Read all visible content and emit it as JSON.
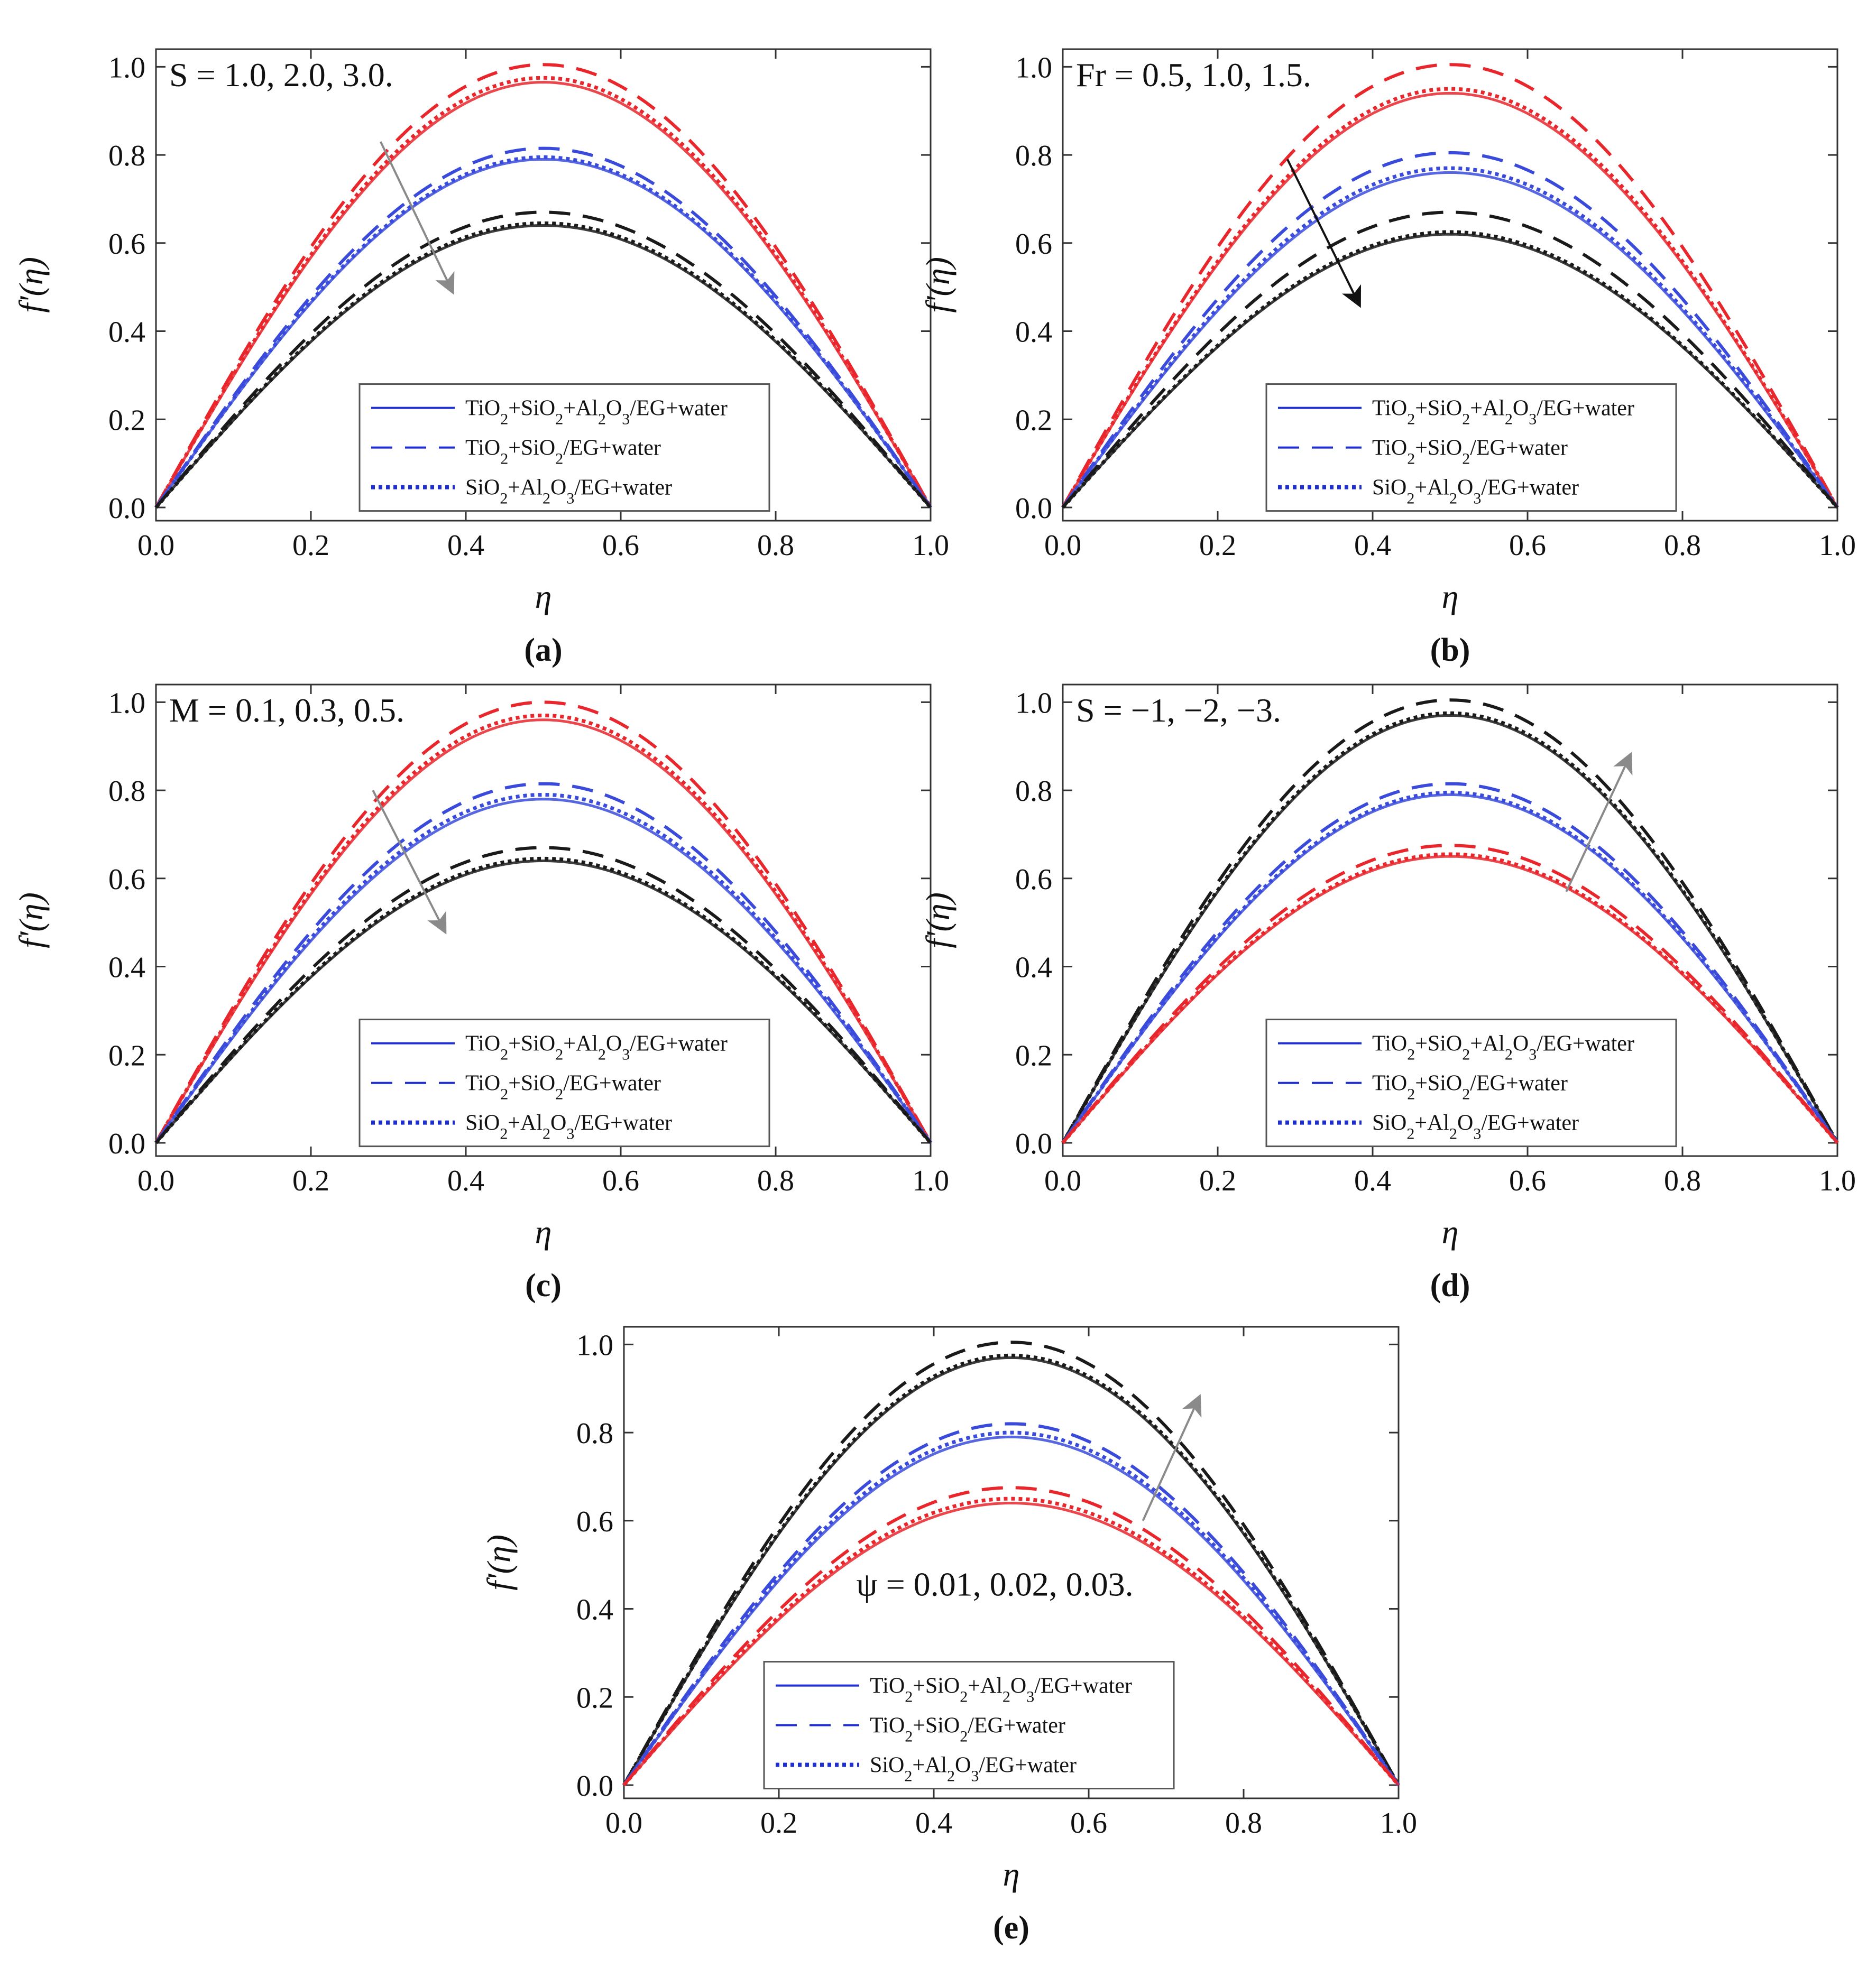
{
  "figure": {
    "series_styles": {
      "solid": "TiO2+SiO2+Al2O3/EG+water",
      "dashed": "TiO2+SiO2/EG+water",
      "dotted": "SiO2+Al2O3/EG+water"
    },
    "colors": {
      "red": "#e8262b",
      "blue": "#3a4bdc",
      "black": "#1a1a1a",
      "arrow_gray": "#8a8a8a",
      "arrow_black": "#111111",
      "legend_blue": "#1f2fd0"
    }
  },
  "chart_data": [
    {
      "panel": "(a)",
      "type": "line",
      "annotation": "S = 1.0, 2.0, 3.0.",
      "xlabel": "η",
      "ylabel": "f'(η)",
      "xlim": [
        0,
        1
      ],
      "ylim": [
        0,
        1
      ],
      "xticks": [
        "0.0",
        "0.2",
        "0.4",
        "0.6",
        "0.8",
        "1.0"
      ],
      "yticks": [
        "0.0",
        "0.2",
        "0.4",
        "0.6",
        "0.8",
        "1.0"
      ],
      "legend": [
        "TiO2+SiO2+Al2O3/EG+water",
        "TiO2+SiO2/EG+water",
        "SiO2+Al2O3/EG+water"
      ],
      "legend_position": "bottom-center",
      "arrow": {
        "from": [
          0.29,
          0.83
        ],
        "to": [
          0.38,
          0.5
        ],
        "color": "gray"
      },
      "curve_peaks": [
        {
          "color": "red",
          "solid": 0.965,
          "dashed": 1.005,
          "dotted": 0.975
        },
        {
          "color": "blue",
          "solid": 0.79,
          "dashed": 0.815,
          "dotted": 0.795
        },
        {
          "color": "black",
          "solid": 0.64,
          "dashed": 0.67,
          "dotted": 0.645
        }
      ]
    },
    {
      "panel": "(b)",
      "type": "line",
      "annotation": "Fr = 0.5, 1.0, 1.5.",
      "xlabel": "η",
      "ylabel": "f'(η)",
      "xlim": [
        0,
        1
      ],
      "ylim": [
        0,
        1
      ],
      "xticks": [
        "0.0",
        "0.2",
        "0.4",
        "0.6",
        "0.8",
        "1.0"
      ],
      "yticks": [
        "0.0",
        "0.2",
        "0.4",
        "0.6",
        "0.8",
        "1.0"
      ],
      "legend": [
        "TiO2+SiO2+Al2O3/EG+water",
        "TiO2+SiO2/EG+water",
        "SiO2+Al2O3/EG+water"
      ],
      "legend_position": "bottom-center",
      "arrow": {
        "from": [
          0.29,
          0.79
        ],
        "to": [
          0.38,
          0.47
        ],
        "color": "black"
      },
      "curve_peaks": [
        {
          "color": "red",
          "solid": 0.94,
          "dashed": 1.005,
          "dotted": 0.95
        },
        {
          "color": "blue",
          "solid": 0.76,
          "dashed": 0.805,
          "dotted": 0.77
        },
        {
          "color": "black",
          "solid": 0.62,
          "dashed": 0.67,
          "dotted": 0.625
        }
      ]
    },
    {
      "panel": "(c)",
      "type": "line",
      "annotation": "M = 0.1, 0.3, 0.5.",
      "xlabel": "η",
      "ylabel": "f'(η)",
      "xlim": [
        0,
        1
      ],
      "ylim": [
        0,
        1
      ],
      "xticks": [
        "0.0",
        "0.2",
        "0.4",
        "0.6",
        "0.8",
        "1.0"
      ],
      "yticks": [
        "0.0",
        "0.2",
        "0.4",
        "0.6",
        "0.8",
        "1.0"
      ],
      "legend": [
        "TiO2+SiO2+Al2O3/EG+water",
        "TiO2+SiO2/EG+water",
        "SiO2+Al2O3/EG+water"
      ],
      "legend_position": "bottom-center",
      "arrow": {
        "from": [
          0.28,
          0.8
        ],
        "to": [
          0.37,
          0.49
        ],
        "color": "gray"
      },
      "curve_peaks": [
        {
          "color": "red",
          "solid": 0.96,
          "dashed": 1.0,
          "dotted": 0.97
        },
        {
          "color": "blue",
          "solid": 0.78,
          "dashed": 0.815,
          "dotted": 0.79
        },
        {
          "color": "black",
          "solid": 0.64,
          "dashed": 0.67,
          "dotted": 0.645
        }
      ]
    },
    {
      "panel": "(d)",
      "type": "line",
      "annotation": "S = −1, −2, −3.",
      "xlabel": "η",
      "ylabel": "f'(η)",
      "xlim": [
        0,
        1
      ],
      "ylim": [
        0,
        1
      ],
      "xticks": [
        "0.0",
        "0.2",
        "0.4",
        "0.6",
        "0.8",
        "1.0"
      ],
      "yticks": [
        "0.0",
        "0.2",
        "0.4",
        "0.6",
        "0.8",
        "1.0"
      ],
      "legend": [
        "TiO2+SiO2+Al2O3/EG+water",
        "TiO2+SiO2/EG+water",
        "SiO2+Al2O3/EG+water"
      ],
      "legend_position": "bottom-center",
      "arrow": {
        "from": [
          0.65,
          0.57
        ],
        "to": [
          0.73,
          0.87
        ],
        "color": "gray"
      },
      "curve_peaks": [
        {
          "color": "black",
          "solid": 0.97,
          "dashed": 1.005,
          "dotted": 0.975
        },
        {
          "color": "blue",
          "solid": 0.79,
          "dashed": 0.815,
          "dotted": 0.795
        },
        {
          "color": "red",
          "solid": 0.65,
          "dashed": 0.675,
          "dotted": 0.655
        }
      ]
    },
    {
      "panel": "(e)",
      "type": "line",
      "annotation": "ψ = 0.01, 0.02, 0.03.",
      "xlabel": "η",
      "ylabel": "f'(η)",
      "xlim": [
        0,
        1
      ],
      "ylim": [
        0,
        1
      ],
      "xticks": [
        "0.0",
        "0.2",
        "0.4",
        "0.6",
        "0.8",
        "1.0"
      ],
      "yticks": [
        "0.0",
        "0.2",
        "0.4",
        "0.6",
        "0.8",
        "1.0"
      ],
      "legend": [
        "TiO2+SiO2+Al2O3/EG+water",
        "TiO2+SiO2/EG+water",
        "SiO2+Al2O3/EG+water"
      ],
      "legend_position": "bottom-center",
      "arrow": {
        "from": [
          0.67,
          0.6
        ],
        "to": [
          0.74,
          0.87
        ],
        "color": "gray"
      },
      "curve_peaks": [
        {
          "color": "black",
          "solid": 0.97,
          "dashed": 1.005,
          "dotted": 0.975
        },
        {
          "color": "blue",
          "solid": 0.79,
          "dashed": 0.82,
          "dotted": 0.8
        },
        {
          "color": "red",
          "solid": 0.64,
          "dashed": 0.675,
          "dotted": 0.65
        }
      ]
    }
  ]
}
